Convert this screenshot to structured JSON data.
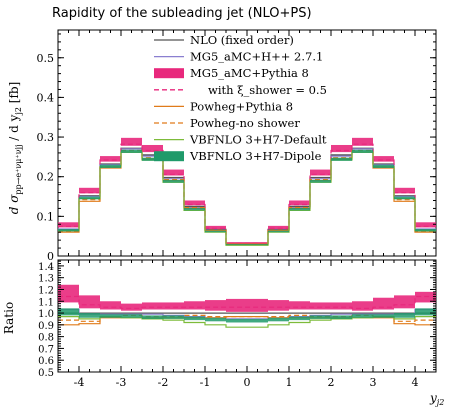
{
  "chart_data": [
    {
      "type": "step",
      "title": "Rapidity of the subleading jet (NLO+PS)",
      "ylabel": "d σ_{pp→e+νμ+νjj} / d y_{j2} [fb]",
      "xlim": [
        -4.5,
        4.5
      ],
      "ylim": [
        0,
        0.57
      ],
      "x_ticks": [
        "-4",
        "-3",
        "-2",
        "-1",
        "0",
        "1",
        "2",
        "3",
        "4"
      ],
      "y_ticks": [
        "0",
        "0.1",
        "0.2",
        "0.3",
        "0.4",
        "0.5"
      ],
      "bin_edges": [
        -4.5,
        -4,
        -3.5,
        -3,
        -2.5,
        -2,
        -1.5,
        -1,
        -0.5,
        0.5,
        1,
        1.5,
        2,
        2.5,
        3,
        3.5,
        4,
        4.5
      ],
      "series": [
        {
          "name": "NLO (fixed order)",
          "style": "line",
          "color": "#555555",
          "values": [
            0.066,
            0.152,
            0.232,
            0.272,
            0.255,
            0.198,
            0.125,
            0.067,
            0.031,
            0.067,
            0.125,
            0.198,
            0.255,
            0.272,
            0.232,
            0.152,
            0.066
          ]
        },
        {
          "name": "MG5_aMC+H++ 2.7.1",
          "style": "line",
          "color": "#8a7fd0",
          "values": [
            0.068,
            0.15,
            0.23,
            0.27,
            0.252,
            0.195,
            0.122,
            0.065,
            0.03,
            0.065,
            0.122,
            0.195,
            0.252,
            0.27,
            0.23,
            0.15,
            0.068
          ]
        },
        {
          "name": "MG5_aMC+Pythia 8",
          "style": "band",
          "color": "#e8287c",
          "low": [
            0.072,
            0.158,
            0.238,
            0.278,
            0.262,
            0.203,
            0.128,
            0.068,
            0.031,
            0.068,
            0.128,
            0.203,
            0.262,
            0.278,
            0.238,
            0.158,
            0.072
          ],
          "high": [
            0.085,
            0.172,
            0.252,
            0.298,
            0.28,
            0.218,
            0.14,
            0.076,
            0.035,
            0.076,
            0.14,
            0.218,
            0.28,
            0.298,
            0.252,
            0.172,
            0.085
          ]
        },
        {
          "name": "with ξ_shower = 0.5",
          "style": "dashed",
          "color": "#e8287c",
          "values": [
            0.075,
            0.16,
            0.242,
            0.282,
            0.266,
            0.206,
            0.13,
            0.07,
            0.032,
            0.07,
            0.13,
            0.206,
            0.266,
            0.282,
            0.242,
            0.16,
            0.075
          ]
        },
        {
          "name": "Powheg+Pythia 8",
          "style": "line",
          "color": "#e07b1a",
          "values": [
            0.06,
            0.138,
            0.222,
            0.262,
            0.245,
            0.19,
            0.12,
            0.064,
            0.03,
            0.064,
            0.12,
            0.19,
            0.245,
            0.262,
            0.222,
            0.138,
            0.06
          ]
        },
        {
          "name": "Powheg-no shower",
          "style": "dashed",
          "color": "#e07b1a",
          "values": [
            0.062,
            0.142,
            0.225,
            0.266,
            0.248,
            0.193,
            0.122,
            0.065,
            0.03,
            0.065,
            0.122,
            0.193,
            0.248,
            0.266,
            0.225,
            0.142,
            0.062
          ]
        },
        {
          "name": "VBFNLO 3+H7-Default",
          "style": "line",
          "color": "#7dbb3a",
          "values": [
            0.064,
            0.145,
            0.225,
            0.262,
            0.242,
            0.186,
            0.115,
            0.06,
            0.027,
            0.06,
            0.115,
            0.186,
            0.242,
            0.262,
            0.225,
            0.145,
            0.064
          ]
        },
        {
          "name": "VBFNLO 3+H7-Dipole",
          "style": "band",
          "color": "#1f9a6a",
          "low": [
            0.062,
            0.143,
            0.222,
            0.26,
            0.24,
            0.185,
            0.115,
            0.06,
            0.028,
            0.06,
            0.115,
            0.185,
            0.24,
            0.26,
            0.222,
            0.143,
            0.062
          ],
          "high": [
            0.068,
            0.15,
            0.23,
            0.268,
            0.248,
            0.192,
            0.121,
            0.064,
            0.03,
            0.064,
            0.121,
            0.192,
            0.248,
            0.268,
            0.23,
            0.15,
            0.068
          ]
        }
      ]
    },
    {
      "type": "step",
      "xlabel": "y_{j2}",
      "ylabel": "Ratio",
      "xlim": [
        -4.5,
        4.5
      ],
      "ylim": [
        0.5,
        1.45
      ],
      "x_ticks": [
        "-4",
        "-3",
        "-2",
        "-1",
        "0",
        "1",
        "2",
        "3",
        "4"
      ],
      "y_ticks": [
        "0.5",
        "0.6",
        "0.7",
        "0.8",
        "0.9",
        "1.0",
        "1.1",
        "1.2",
        "1.3",
        "1.4"
      ],
      "bin_edges": [
        -4.5,
        -4,
        -3.5,
        -3,
        -2.5,
        -2,
        -1.5,
        -1,
        -0.5,
        0.5,
        1,
        1.5,
        2,
        2.5,
        3,
        3.5,
        4,
        4.5
      ],
      "series": [
        {
          "name": "NLO (fixed order)",
          "style": "line",
          "color": "#555555",
          "values": [
            1.0,
            1.0,
            1.0,
            1.0,
            1.0,
            1.0,
            1.0,
            1.0,
            1.0,
            1.0,
            1.0,
            1.0,
            1.0,
            1.0,
            1.0,
            1.0,
            1.0
          ]
        },
        {
          "name": "MG5_aMC+H++ 2.7.1",
          "style": "line",
          "color": "#8a7fd0",
          "values": [
            1.03,
            0.99,
            0.99,
            0.99,
            0.99,
            0.98,
            0.97,
            0.96,
            0.95,
            0.96,
            0.97,
            0.98,
            0.99,
            0.99,
            0.99,
            0.99,
            1.03
          ]
        },
        {
          "name": "MG5_aMC+Pythia 8",
          "style": "band",
          "color": "#e8287c",
          "low": [
            1.09,
            1.04,
            1.03,
            1.02,
            1.03,
            1.03,
            1.03,
            1.02,
            1.01,
            1.02,
            1.03,
            1.03,
            1.03,
            1.02,
            1.03,
            1.04,
            1.09
          ],
          "high": [
            1.24,
            1.15,
            1.1,
            1.08,
            1.09,
            1.09,
            1.1,
            1.11,
            1.12,
            1.11,
            1.1,
            1.09,
            1.09,
            1.1,
            1.13,
            1.15,
            1.18
          ]
        },
        {
          "name": "with ξ_shower = 0.5",
          "style": "dashed",
          "color": "#e8287c",
          "values": [
            1.14,
            1.07,
            1.05,
            1.04,
            1.05,
            1.05,
            1.05,
            1.05,
            1.05,
            1.05,
            1.05,
            1.05,
            1.05,
            1.04,
            1.05,
            1.07,
            1.14
          ]
        },
        {
          "name": "Powheg+Pythia 8",
          "style": "line",
          "color": "#e07b1a",
          "values": [
            0.9,
            0.91,
            0.96,
            0.96,
            0.96,
            0.96,
            0.96,
            0.96,
            0.97,
            0.96,
            0.96,
            0.96,
            0.96,
            0.96,
            0.96,
            0.91,
            0.9
          ]
        },
        {
          "name": "Powheg-no shower",
          "style": "dashed",
          "color": "#e07b1a",
          "values": [
            0.94,
            0.93,
            0.97,
            0.98,
            0.97,
            0.97,
            0.98,
            0.97,
            0.97,
            0.97,
            0.98,
            0.97,
            0.97,
            0.98,
            0.97,
            0.93,
            0.94
          ]
        },
        {
          "name": "VBFNLO 3+H7-Default",
          "style": "line",
          "color": "#7dbb3a",
          "values": [
            0.97,
            0.95,
            0.97,
            0.96,
            0.95,
            0.94,
            0.92,
            0.9,
            0.88,
            0.9,
            0.92,
            0.94,
            0.95,
            0.96,
            0.97,
            0.95,
            0.97
          ]
        },
        {
          "name": "VBFNLO 3+H7-Dipole",
          "style": "band",
          "color": "#1f9a6a",
          "low": [
            0.98,
            0.96,
            0.96,
            0.96,
            0.95,
            0.95,
            0.94,
            0.93,
            0.92,
            0.93,
            0.94,
            0.95,
            0.95,
            0.96,
            0.96,
            0.96,
            0.98
          ],
          "high": [
            1.04,
            1.0,
            0.99,
            0.99,
            0.98,
            0.98,
            0.97,
            0.96,
            0.95,
            0.96,
            0.97,
            0.98,
            0.98,
            0.99,
            0.99,
            1.0,
            1.04
          ]
        }
      ]
    }
  ],
  "legend": {
    "entries": [
      {
        "label": "NLO (fixed order)",
        "style": "line",
        "color": "#555555"
      },
      {
        "label": "MG5_aMC+H++ 2.7.1",
        "style": "line",
        "color": "#8a7fd0"
      },
      {
        "label": "MG5_aMC+Pythia 8",
        "style": "band",
        "color": "#e8287c"
      },
      {
        "label": "with ξ_shower = 0.5",
        "style": "dashed",
        "color": "#e8287c"
      },
      {
        "label": "Powheg+Pythia 8",
        "style": "line",
        "color": "#e07b1a"
      },
      {
        "label": "Powheg-no shower",
        "style": "dashed",
        "color": "#e07b1a"
      },
      {
        "label": "VBFNLO 3+H7-Default",
        "style": "line",
        "color": "#7dbb3a"
      },
      {
        "label": "VBFNLO 3+H7-Dipole",
        "style": "band",
        "color": "#1f9a6a"
      }
    ]
  }
}
